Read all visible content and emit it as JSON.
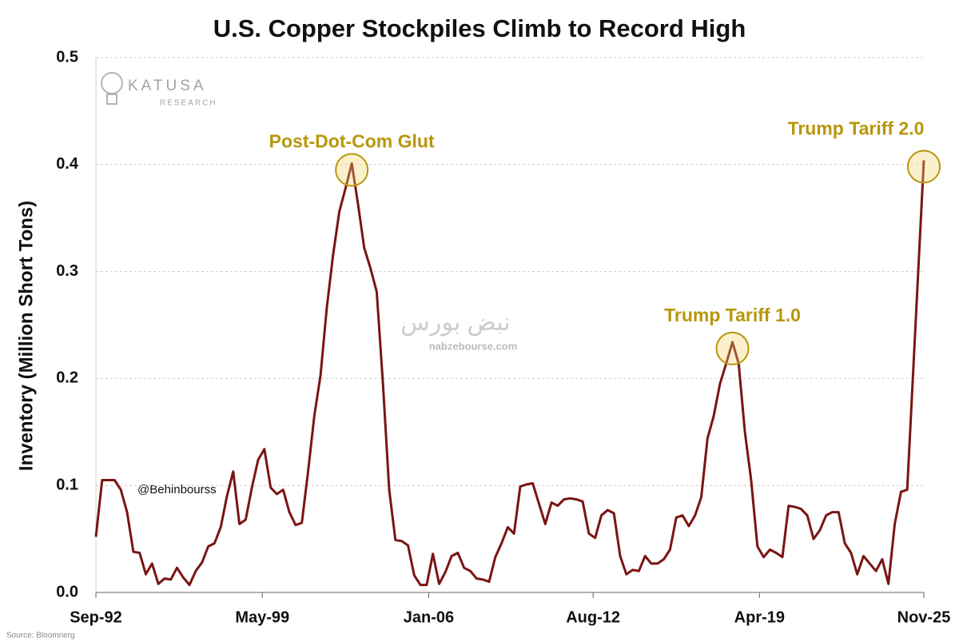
{
  "chart_data": {
    "type": "line",
    "title": "U.S. Copper Stockpiles Climb to Record High",
    "y_label": "Inventory (Million Short Tons)",
    "x": [
      "1992-09",
      "1992-12",
      "1993-03",
      "1993-06",
      "1993-09",
      "1993-12",
      "1994-03",
      "1994-06",
      "1994-09",
      "1994-12",
      "1995-03",
      "1995-06",
      "1995-09",
      "1995-12",
      "1996-03",
      "1996-06",
      "1996-09",
      "1996-12",
      "1997-03",
      "1997-06",
      "1997-09",
      "1997-12",
      "1998-03",
      "1998-06",
      "1998-09",
      "1998-12",
      "1999-03",
      "1999-06",
      "1999-09",
      "1999-12",
      "2000-03",
      "2000-06",
      "2000-09",
      "2000-12",
      "2001-03",
      "2001-06",
      "2001-09",
      "2001-12",
      "2002-03",
      "2002-06",
      "2002-09",
      "2002-12",
      "2003-03",
      "2003-06",
      "2003-09",
      "2003-12",
      "2004-03",
      "2004-06",
      "2004-09",
      "2004-12",
      "2005-03",
      "2005-06",
      "2005-09",
      "2005-12",
      "2006-03",
      "2006-06",
      "2006-09",
      "2006-12",
      "2007-03",
      "2007-06",
      "2007-09",
      "2007-12",
      "2008-03",
      "2008-06",
      "2008-09",
      "2008-12",
      "2009-03",
      "2009-06",
      "2009-09",
      "2009-12",
      "2010-03",
      "2010-06",
      "2010-09",
      "2010-12",
      "2011-03",
      "2011-06",
      "2011-09",
      "2011-12",
      "2012-03",
      "2012-06",
      "2012-09",
      "2012-12",
      "2013-03",
      "2013-06",
      "2013-09",
      "2013-12",
      "2014-03",
      "2014-06",
      "2014-09",
      "2014-12",
      "2015-03",
      "2015-06",
      "2015-09",
      "2015-12",
      "2016-03",
      "2016-06",
      "2016-09",
      "2016-12",
      "2017-03",
      "2017-06",
      "2017-09",
      "2017-12",
      "2018-03",
      "2018-06",
      "2018-09",
      "2018-12",
      "2019-03",
      "2019-06",
      "2019-09",
      "2019-12",
      "2020-03",
      "2020-06",
      "2020-09",
      "2020-12",
      "2021-03",
      "2021-06",
      "2021-09",
      "2021-12",
      "2022-03",
      "2022-06",
      "2022-09",
      "2022-12",
      "2023-03",
      "2023-06",
      "2023-09",
      "2023-12",
      "2024-03",
      "2024-06",
      "2024-09",
      "2024-12",
      "2025-03",
      "2025-11"
    ],
    "series": [
      {
        "name": "Inventory",
        "color": "#7a1414",
        "values": [
          0.052,
          0.105,
          0.105,
          0.105,
          0.096,
          0.075,
          0.038,
          0.037,
          0.017,
          0.027,
          0.008,
          0.013,
          0.012,
          0.023,
          0.014,
          0.007,
          0.02,
          0.028,
          0.043,
          0.046,
          0.061,
          0.09,
          0.113,
          0.064,
          0.068,
          0.098,
          0.124,
          0.134,
          0.098,
          0.092,
          0.096,
          0.075,
          0.063,
          0.065,
          0.113,
          0.165,
          0.203,
          0.266,
          0.315,
          0.356,
          0.378,
          0.401,
          0.363,
          0.322,
          0.303,
          0.281,
          0.195,
          0.096,
          0.049,
          0.048,
          0.044,
          0.016,
          0.007,
          0.007,
          0.036,
          0.008,
          0.019,
          0.034,
          0.037,
          0.023,
          0.02,
          0.013,
          0.012,
          0.01,
          0.033,
          0.046,
          0.061,
          0.055,
          0.099,
          0.101,
          0.102,
          0.083,
          0.064,
          0.084,
          0.081,
          0.087,
          0.088,
          0.087,
          0.085,
          0.055,
          0.051,
          0.072,
          0.077,
          0.074,
          0.034,
          0.017,
          0.021,
          0.02,
          0.034,
          0.027,
          0.027,
          0.031,
          0.04,
          0.07,
          0.072,
          0.062,
          0.072,
          0.089,
          0.144,
          0.165,
          0.195,
          0.214,
          0.234,
          0.214,
          0.15,
          0.105,
          0.043,
          0.033,
          0.04,
          0.037,
          0.033,
          0.081,
          0.08,
          0.078,
          0.072,
          0.05,
          0.058,
          0.072,
          0.075,
          0.075,
          0.046,
          0.037,
          0.017,
          0.034,
          0.027,
          0.02,
          0.031,
          0.008,
          0.064,
          0.094,
          0.096,
          0.404
        ]
      }
    ],
    "xlim": [
      "1992-09",
      "2025-11"
    ],
    "xticks": [
      {
        "value": "1992-09",
        "label": "Sep-92"
      },
      {
        "value": "1999-05",
        "label": "May-99"
      },
      {
        "value": "2006-01",
        "label": "Jan-06"
      },
      {
        "value": "2012-08",
        "label": "Aug-12"
      },
      {
        "value": "2019-04",
        "label": "Apr-19"
      },
      {
        "value": "2025-11",
        "label": "Nov-25"
      }
    ],
    "ylim": [
      0,
      0.5
    ],
    "yticks": [
      {
        "value": 0,
        "label": "0.0"
      },
      0.1,
      0.2,
      0.3,
      0.4,
      0.5
    ],
    "grid": true,
    "annotations": [
      "Post-Dot-Com Glut",
      "Trump Tariff 1.0",
      "Trump Tariff 2.0"
    ],
    "annotation_color": "#b8960c",
    "source": "Source: Bloomnerg",
    "watermarks": {
      "logo": "KATUSA",
      "logo_sub": "RESEARCH",
      "handle": "@Behinbourss",
      "brand": "نبض بورس",
      "site": "nabzebourse.com"
    }
  }
}
